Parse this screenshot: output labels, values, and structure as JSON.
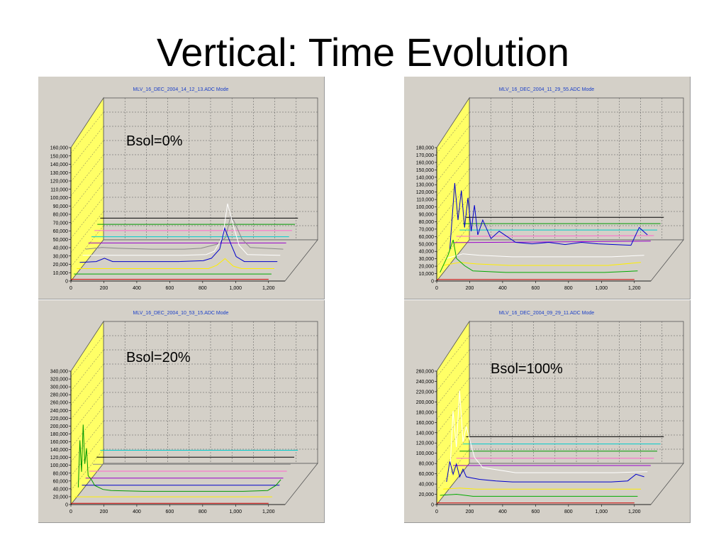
{
  "slide": {
    "title": "Vertical:  Time Evolution"
  },
  "chart_data": [
    {
      "type": "line",
      "title": "MLV_16_DEC_2004_14_12_13.ADC Mode",
      "annotation": "Bsol=0%",
      "xlim": [
        0,
        1300
      ],
      "ylim": [
        0,
        160000
      ],
      "xticks": [
        0,
        200,
        400,
        600,
        800,
        1000,
        1200
      ],
      "xtick_labels": [
        "0",
        "200",
        "400",
        "600",
        "800",
        "1,000",
        "1,200"
      ],
      "yticks": [
        0,
        10000,
        20000,
        30000,
        40000,
        50000,
        60000,
        70000,
        80000,
        90000,
        100000,
        110000,
        120000,
        130000,
        140000,
        150000,
        160000
      ],
      "ytick_labels": [
        "0",
        "10,000",
        "20,000",
        "30,000",
        "40,000",
        "50,000",
        "60,000",
        "70,000",
        "80,000",
        "90,000",
        "100,000",
        "110,000",
        "120,000",
        "130,000",
        "140,000",
        "150,000",
        "160,000"
      ],
      "grid": true,
      "series": [
        {
          "color": "#cc0000",
          "x": [
            0,
            200,
            400,
            600,
            800,
            1000,
            1200
          ],
          "values": [
            2000,
            2000,
            2000,
            2000,
            2000,
            2000,
            2000
          ]
        },
        {
          "color": "#00aa00",
          "x": [
            0,
            200,
            400,
            600,
            800,
            1000,
            1200
          ],
          "values": [
            4000,
            4000,
            4000,
            4000,
            4000,
            4000,
            4000
          ]
        },
        {
          "color": "#ffee00",
          "x": [
            0,
            100,
            200,
            400,
            600,
            800,
            850,
            900,
            950,
            1000,
            1200
          ],
          "values": [
            6000,
            6000,
            6000,
            6000,
            6000,
            6000,
            10000,
            18000,
            9000,
            6000,
            6000
          ]
        },
        {
          "color": "#0000cc",
          "x": [
            0,
            100,
            150,
            200,
            400,
            600,
            750,
            800,
            850,
            880,
            900,
            920,
            950,
            1000,
            1200
          ],
          "values": [
            9000,
            10000,
            14000,
            10000,
            10000,
            10000,
            11000,
            14000,
            25000,
            50000,
            40000,
            30000,
            16000,
            10000,
            10000
          ]
        },
        {
          "color": "#ffffff",
          "x": [
            0,
            100,
            200,
            400,
            600,
            750,
            800,
            850,
            880,
            900,
            920,
            950,
            1000,
            1200
          ],
          "values": [
            13000,
            13000,
            13000,
            13000,
            13000,
            14000,
            18000,
            35000,
            75000,
            60000,
            45000,
            25000,
            14000,
            13000
          ]
        },
        {
          "color": "#888888",
          "x": [
            0,
            100,
            200,
            400,
            600,
            700,
            800,
            850,
            880,
            900,
            950,
            1000,
            1200
          ],
          "values": [
            16000,
            18000,
            17000,
            16000,
            16000,
            17000,
            22000,
            30000,
            55000,
            50000,
            28000,
            18000,
            16000
          ]
        },
        {
          "color": "#9900cc",
          "x": [
            0,
            1200
          ],
          "values": [
            19000,
            19000
          ]
        },
        {
          "color": "#00cccc",
          "x": [
            0,
            1200
          ],
          "values": [
            22000,
            22000
          ]
        },
        {
          "color": "#ff66cc",
          "x": [
            0,
            1200
          ],
          "values": [
            25000,
            25000
          ]
        },
        {
          "color": "#009900",
          "x": [
            0,
            1200
          ],
          "values": [
            28000,
            28000
          ]
        },
        {
          "color": "#000000",
          "x": [
            0,
            1200
          ],
          "values": [
            31000,
            31000
          ]
        }
      ]
    },
    {
      "type": "line",
      "title": "MLV_16_DEC_2004_11_29_55.ADC Mode",
      "annotation": "",
      "xlim": [
        0,
        1300
      ],
      "ylim": [
        0,
        180000
      ],
      "xticks": [
        0,
        200,
        400,
        600,
        800,
        1000,
        1200
      ],
      "xtick_labels": [
        "0",
        "200",
        "400",
        "600",
        "800",
        "1,000",
        "1,200"
      ],
      "yticks": [
        0,
        10000,
        20000,
        30000,
        40000,
        50000,
        60000,
        70000,
        80000,
        90000,
        100000,
        110000,
        120000,
        130000,
        140000,
        150000,
        160000,
        170000,
        180000
      ],
      "ytick_labels": [
        "0",
        "10,000",
        "20,000",
        "30,000",
        "40,000",
        "50,000",
        "60,000",
        "70,000",
        "80,000",
        "90,000",
        "100,000",
        "110,000",
        "120,000",
        "130,000",
        "140,000",
        "150,000",
        "160,000",
        "170,000",
        "180,000"
      ],
      "grid": true,
      "series": [
        {
          "color": "#cc0000",
          "x": [
            0,
            1200
          ],
          "values": [
            2000,
            2000
          ]
        },
        {
          "color": "#00aa00",
          "x": [
            0,
            50,
            80,
            100,
            150,
            200,
            400,
            600,
            800,
            1000,
            1200
          ],
          "values": [
            6000,
            30000,
            50000,
            25000,
            15000,
            8000,
            6000,
            6000,
            6000,
            6000,
            8000
          ]
        },
        {
          "color": "#ffee00",
          "x": [
            0,
            100,
            200,
            400,
            600,
            800,
            1000,
            1200
          ],
          "values": [
            10000,
            14000,
            12000,
            10000,
            10000,
            10000,
            10000,
            14000
          ]
        },
        {
          "color": "#ffffff",
          "x": [
            0,
            100,
            200,
            400,
            600,
            800,
            1000,
            1200
          ],
          "values": [
            14000,
            20000,
            18000,
            16000,
            16000,
            16000,
            16000,
            18000
          ]
        },
        {
          "color": "#0000cc",
          "x": [
            0,
            30,
            50,
            70,
            90,
            110,
            130,
            150,
            170,
            200,
            250,
            300,
            400,
            500,
            600,
            700,
            800,
            900,
            1000,
            1100,
            1150,
            1200
          ],
          "values": [
            20000,
            110000,
            60000,
            100000,
            50000,
            90000,
            45000,
            80000,
            40000,
            60000,
            35000,
            45000,
            30000,
            28000,
            30000,
            27000,
            30000,
            28000,
            27000,
            26000,
            50000,
            40000
          ]
        },
        {
          "color": "#9900cc",
          "x": [
            0,
            1200
          ],
          "values": [
            24000,
            26000
          ]
        },
        {
          "color": "#ff66cc",
          "x": [
            0,
            1200
          ],
          "values": [
            27000,
            28000
          ]
        },
        {
          "color": "#00cccc",
          "x": [
            0,
            1200
          ],
          "values": [
            30000,
            30000
          ]
        },
        {
          "color": "#009900",
          "x": [
            0,
            1200
          ],
          "values": [
            33000,
            33000
          ]
        },
        {
          "color": "#000000",
          "x": [
            0,
            1200
          ],
          "values": [
            36000,
            36000
          ]
        }
      ]
    },
    {
      "type": "line",
      "title": "MLV_16_DEC_2004_10_53_15.ADC Mode",
      "annotation": "Bsol=20%",
      "xlim": [
        0,
        1300
      ],
      "ylim": [
        0,
        340000
      ],
      "xticks": [
        0,
        200,
        400,
        600,
        800,
        1000,
        1200
      ],
      "xtick_labels": [
        "0",
        "200",
        "400",
        "600",
        "800",
        "1,000",
        "1,200"
      ],
      "yticks": [
        0,
        20000,
        40000,
        60000,
        80000,
        100000,
        120000,
        140000,
        160000,
        180000,
        200000,
        220000,
        240000,
        260000,
        280000,
        300000,
        320000,
        340000
      ],
      "ytick_labels": [
        "0",
        "20,000",
        "40,000",
        "60,000",
        "80,000",
        "100,000",
        "120,000",
        "140,000",
        "160,000",
        "180,000",
        "200,000",
        "220,000",
        "240,000",
        "260,000",
        "280,000",
        "300,000",
        "320,000",
        "340,000"
      ],
      "grid": true,
      "series": [
        {
          "color": "#cc0000",
          "x": [
            0,
            1200
          ],
          "values": [
            3000,
            3000
          ]
        },
        {
          "color": "#ffee00",
          "x": [
            0,
            1200
          ],
          "values": [
            8000,
            8000
          ]
        },
        {
          "color": "#009900",
          "x": [
            0,
            10,
            20,
            30,
            40,
            50,
            60,
            80,
            100,
            150,
            200,
            400,
            600,
            800,
            1000,
            1150,
            1200,
            1230
          ],
          "values": [
            20000,
            140000,
            60000,
            180000,
            80000,
            120000,
            50000,
            40000,
            25000,
            15000,
            12000,
            10000,
            10000,
            10000,
            10000,
            12000,
            25000,
            40000
          ]
        },
        {
          "color": "#0000cc",
          "x": [
            0,
            1200
          ],
          "values": [
            14000,
            14000
          ]
        },
        {
          "color": "#9900cc",
          "x": [
            0,
            1200
          ],
          "values": [
            20000,
            20000
          ]
        },
        {
          "color": "#ff66cc",
          "x": [
            0,
            1200
          ],
          "values": [
            26000,
            26000
          ]
        },
        {
          "color": "#888888",
          "x": [
            0,
            1200
          ],
          "values": [
            32000,
            32000
          ]
        },
        {
          "color": "#000000",
          "x": [
            0,
            1200
          ],
          "values": [
            38000,
            38000
          ]
        },
        {
          "color": "#00cccc",
          "x": [
            0,
            1200
          ],
          "values": [
            44000,
            44000
          ]
        }
      ]
    },
    {
      "type": "line",
      "title": "MLV_16_DEC_2004_09_29_11.ADC Mode",
      "annotation": "Bsol=100%",
      "xlim": [
        0,
        1300
      ],
      "ylim": [
        0,
        260000
      ],
      "xticks": [
        0,
        200,
        400,
        600,
        800,
        1000,
        1200
      ],
      "xtick_labels": [
        "0",
        "200",
        "400",
        "600",
        "800",
        "1,000",
        "1,200"
      ],
      "yticks": [
        0,
        20000,
        40000,
        60000,
        80000,
        100000,
        120000,
        140000,
        160000,
        180000,
        200000,
        220000,
        240000,
        260000
      ],
      "ytick_labels": [
        "0",
        "20,000",
        "40,000",
        "60,000",
        "80,000",
        "100,000",
        "120,000",
        "140,000",
        "160,000",
        "180,000",
        "200,000",
        "220,000",
        "240,000",
        "260,000"
      ],
      "grid": true,
      "series": [
        {
          "color": "#cc0000",
          "x": [
            0,
            1200
          ],
          "values": [
            3000,
            3000
          ]
        },
        {
          "color": "#00aa00",
          "x": [
            0,
            100,
            200,
            1200
          ],
          "values": [
            10000,
            12000,
            8000,
            8000
          ]
        },
        {
          "color": "#ffee00",
          "x": [
            0,
            100,
            200,
            1200
          ],
          "values": [
            14000,
            16000,
            14000,
            14000
          ]
        },
        {
          "color": "#0000cc",
          "x": [
            0,
            20,
            40,
            60,
            80,
            100,
            120,
            150,
            200,
            300,
            400,
            600,
            800,
            1000,
            1100,
            1150,
            1200
          ],
          "values": [
            20000,
            60000,
            35000,
            55000,
            30000,
            45000,
            30000,
            28000,
            25000,
            22000,
            20000,
            20000,
            20000,
            20000,
            22000,
            35000,
            30000
          ]
        },
        {
          "color": "#ffffff",
          "x": [
            0,
            20,
            40,
            60,
            80,
            100,
            150,
            200,
            400,
            600,
            800,
            1000,
            1200
          ],
          "values": [
            25000,
            150000,
            80000,
            190000,
            90000,
            120000,
            60000,
            40000,
            30000,
            30000,
            30000,
            30000,
            32000
          ]
        },
        {
          "color": "#9900cc",
          "x": [
            0,
            1200
          ],
          "values": [
            36000,
            36000
          ]
        },
        {
          "color": "#ff66cc",
          "x": [
            0,
            1200
          ],
          "values": [
            42000,
            42000
          ]
        },
        {
          "color": "#009900",
          "x": [
            0,
            1200
          ],
          "values": [
            48000,
            48000
          ]
        },
        {
          "color": "#00cccc",
          "x": [
            0,
            1200
          ],
          "values": [
            54000,
            54000
          ]
        },
        {
          "color": "#000000",
          "x": [
            0,
            1200
          ],
          "values": [
            60000,
            60000
          ]
        }
      ]
    }
  ]
}
